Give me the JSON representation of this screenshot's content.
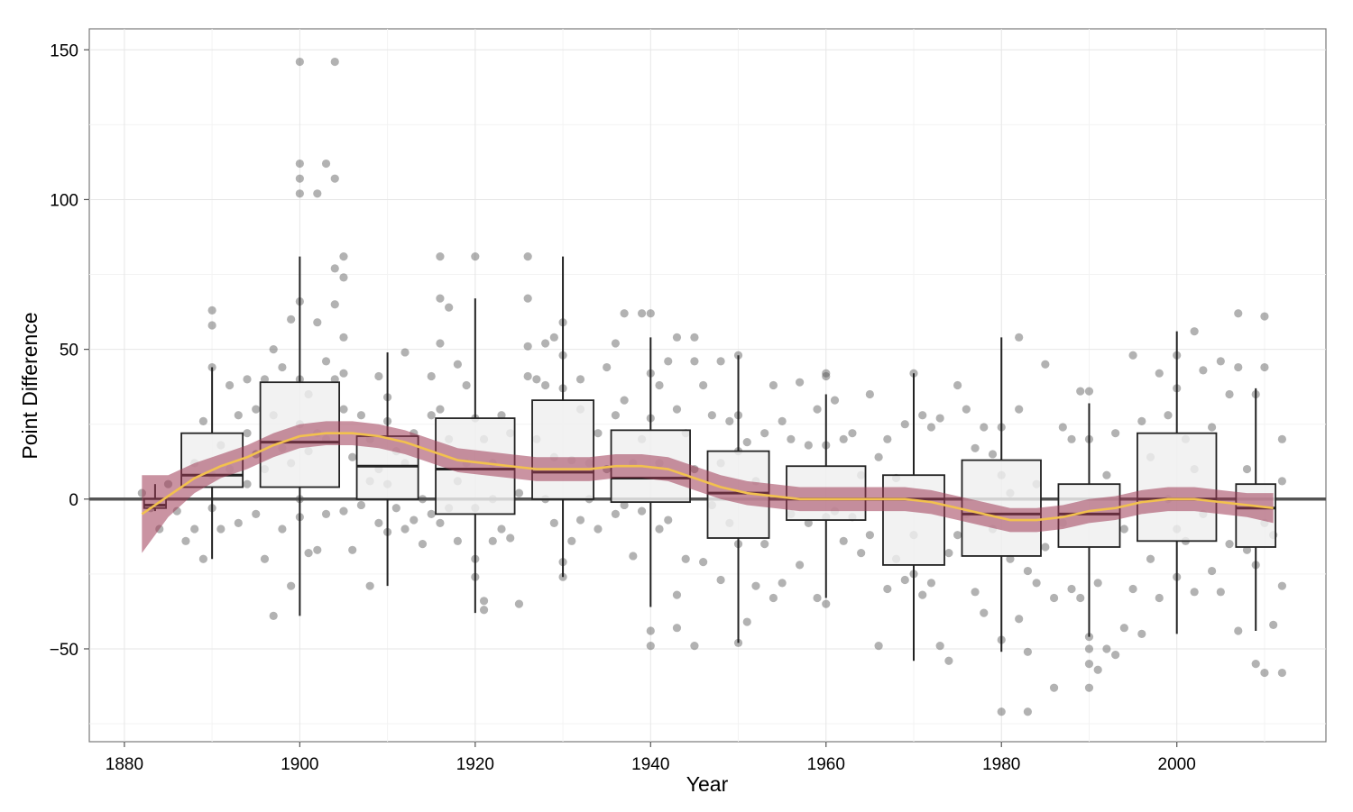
{
  "chart_data": {
    "type": "boxplot",
    "xlabel": "Year",
    "ylabel": "Point Difference",
    "xlim": [
      1876,
      2017
    ],
    "ylim": [
      -81,
      157
    ],
    "x_ticks": [
      1880,
      1900,
      1920,
      1940,
      1960,
      1980,
      2000
    ],
    "x_tick_labels": [
      "1880",
      "1900",
      "1920",
      "1940",
      "1960",
      "1980",
      "2000"
    ],
    "y_ticks": [
      -50,
      0,
      50,
      100,
      150
    ],
    "y_tick_labels": [
      "−50",
      "0",
      "50",
      "100",
      "150"
    ],
    "reference_line_y": 0,
    "grid": true,
    "colors": {
      "points": "#555555",
      "box_fill": "#efefef",
      "box_stroke": "#222222",
      "smooth_band": "#9e3a55",
      "smooth_line": "#f2c14e",
      "reference_line": "#555555"
    },
    "boxes": [
      {
        "x": 1883.5,
        "width": 2.5,
        "whisker_low": -4,
        "q1": -3,
        "median": -2,
        "q3": 0,
        "whisker_high": 5
      },
      {
        "x": 1890,
        "width": 7,
        "whisker_low": -20,
        "q1": 4,
        "median": 8,
        "q3": 22,
        "whisker_high": 44
      },
      {
        "x": 1900,
        "width": 9,
        "whisker_low": -39,
        "q1": 4,
        "median": 19,
        "q3": 39,
        "whisker_high": 81
      },
      {
        "x": 1910,
        "width": 7,
        "whisker_low": -29,
        "q1": 0,
        "median": 11,
        "q3": 21,
        "whisker_high": 49
      },
      {
        "x": 1920,
        "width": 9,
        "whisker_low": -38,
        "q1": -5,
        "median": 10,
        "q3": 27,
        "whisker_high": 67
      },
      {
        "x": 1930,
        "width": 7,
        "whisker_low": -26,
        "q1": 0,
        "median": 9,
        "q3": 33,
        "whisker_high": 81
      },
      {
        "x": 1940,
        "width": 9,
        "whisker_low": -36,
        "q1": -1,
        "median": 7,
        "q3": 23,
        "whisker_high": 54
      },
      {
        "x": 1950,
        "width": 7,
        "whisker_low": -48,
        "q1": -13,
        "median": 2,
        "q3": 16,
        "whisker_high": 48
      },
      {
        "x": 1960,
        "width": 9,
        "whisker_low": -33,
        "q1": -7,
        "median": 0,
        "q3": 11,
        "whisker_high": 35
      },
      {
        "x": 1970,
        "width": 7,
        "whisker_low": -54,
        "q1": -22,
        "median": 0,
        "q3": 8,
        "whisker_high": 42
      },
      {
        "x": 1980,
        "width": 9,
        "whisker_low": -51,
        "q1": -19,
        "median": -5,
        "q3": 13,
        "whisker_high": 54
      },
      {
        "x": 1990,
        "width": 7,
        "whisker_low": -46,
        "q1": -16,
        "median": -5,
        "q3": 5,
        "whisker_high": 32
      },
      {
        "x": 2000,
        "width": 9,
        "whisker_low": -45,
        "q1": -14,
        "median": 0,
        "q3": 22,
        "whisker_high": 56
      },
      {
        "x": 2009,
        "width": 4.5,
        "whisker_low": -44,
        "q1": -16,
        "median": -3,
        "q3": 5,
        "whisker_high": 37
      }
    ],
    "smooth": {
      "x": [
        1882,
        1885,
        1888,
        1891,
        1894,
        1897,
        1900,
        1903,
        1906,
        1909,
        1912,
        1915,
        1918,
        1921,
        1924,
        1927,
        1930,
        1933,
        1936,
        1939,
        1942,
        1945,
        1948,
        1951,
        1954,
        1957,
        1960,
        1963,
        1966,
        1969,
        1972,
        1975,
        1978,
        1981,
        1984,
        1987,
        1990,
        1993,
        1996,
        1999,
        2002,
        2005,
        2008,
        2011
      ],
      "y": [
        -5,
        1,
        7,
        11,
        14,
        18,
        21,
        22,
        22,
        21,
        19,
        16,
        13,
        12,
        11,
        10,
        10,
        10,
        11,
        11,
        10,
        7,
        4,
        2,
        1,
        0,
        0,
        0,
        0,
        0,
        -1,
        -3,
        -5,
        -7,
        -7,
        -6,
        -4,
        -3,
        -1,
        0,
        0,
        -1,
        -2,
        -3
      ],
      "band_halfwidth": [
        13,
        7,
        5,
        4,
        4,
        4,
        4,
        4,
        4,
        4,
        4,
        4,
        4,
        4,
        4,
        4,
        4,
        4,
        4,
        4,
        4,
        4,
        4,
        4,
        4,
        4,
        4,
        4,
        4,
        4,
        4,
        4,
        4,
        4,
        4,
        4,
        4,
        4,
        4,
        4,
        4,
        4,
        4,
        5
      ]
    },
    "points": [
      [
        1882,
        2
      ],
      [
        1883,
        -3
      ],
      [
        1884,
        -10
      ],
      [
        1885,
        5
      ],
      [
        1886,
        -4
      ],
      [
        1887,
        -14
      ],
      [
        1888,
        -10
      ],
      [
        1888,
        12
      ],
      [
        1889,
        -20
      ],
      [
        1889,
        26
      ],
      [
        1890,
        63
      ],
      [
        1890,
        58
      ],
      [
        1890,
        44
      ],
      [
        1890,
        8
      ],
      [
        1890,
        -3
      ],
      [
        1891,
        -10
      ],
      [
        1891,
        18
      ],
      [
        1892,
        10
      ],
      [
        1892,
        38
      ],
      [
        1893,
        28
      ],
      [
        1893,
        -8
      ],
      [
        1894,
        40
      ],
      [
        1894,
        22
      ],
      [
        1894,
        5
      ],
      [
        1895,
        -5
      ],
      [
        1895,
        15
      ],
      [
        1895,
        30
      ],
      [
        1896,
        -20
      ],
      [
        1896,
        40
      ],
      [
        1896,
        10
      ],
      [
        1897,
        50
      ],
      [
        1897,
        -39
      ],
      [
        1897,
        28
      ],
      [
        1898,
        -10
      ],
      [
        1898,
        17
      ],
      [
        1898,
        44
      ],
      [
        1899,
        -29
      ],
      [
        1899,
        60
      ],
      [
        1899,
        12
      ],
      [
        1900,
        146
      ],
      [
        1900,
        112
      ],
      [
        1900,
        107
      ],
      [
        1900,
        102
      ],
      [
        1900,
        66
      ],
      [
        1900,
        40
      ],
      [
        1900,
        0
      ],
      [
        1900,
        -6
      ],
      [
        1900,
        25
      ],
      [
        1901,
        16
      ],
      [
        1901,
        -18
      ],
      [
        1901,
        35
      ],
      [
        1902,
        102
      ],
      [
        1902,
        59
      ],
      [
        1902,
        -17
      ],
      [
        1902,
        22
      ],
      [
        1903,
        112
      ],
      [
        1903,
        46
      ],
      [
        1903,
        20
      ],
      [
        1903,
        -5
      ],
      [
        1904,
        146
      ],
      [
        1904,
        107
      ],
      [
        1904,
        77
      ],
      [
        1904,
        65
      ],
      [
        1904,
        40
      ],
      [
        1905,
        81
      ],
      [
        1905,
        74
      ],
      [
        1905,
        54
      ],
      [
        1905,
        42
      ],
      [
        1905,
        30
      ],
      [
        1905,
        -4
      ],
      [
        1906,
        -17
      ],
      [
        1906,
        14
      ],
      [
        1907,
        28
      ],
      [
        1907,
        -2
      ],
      [
        1908,
        6
      ],
      [
        1908,
        -29
      ],
      [
        1908,
        20
      ],
      [
        1909,
        41
      ],
      [
        1909,
        -8
      ],
      [
        1909,
        10
      ],
      [
        1910,
        34
      ],
      [
        1910,
        26
      ],
      [
        1910,
        5
      ],
      [
        1910,
        -11
      ],
      [
        1911,
        16
      ],
      [
        1911,
        -3
      ],
      [
        1912,
        49
      ],
      [
        1912,
        12
      ],
      [
        1912,
        -10
      ],
      [
        1913,
        22
      ],
      [
        1913,
        -7
      ],
      [
        1914,
        0
      ],
      [
        1914,
        -15
      ],
      [
        1915,
        41
      ],
      [
        1915,
        28
      ],
      [
        1915,
        -5
      ],
      [
        1916,
        81
      ],
      [
        1916,
        67
      ],
      [
        1916,
        52
      ],
      [
        1916,
        30
      ],
      [
        1916,
        -8
      ],
      [
        1917,
        64
      ],
      [
        1917,
        20
      ],
      [
        1917,
        -3
      ],
      [
        1918,
        45
      ],
      [
        1918,
        6
      ],
      [
        1918,
        -14
      ],
      [
        1919,
        38
      ],
      [
        1919,
        12
      ],
      [
        1920,
        81
      ],
      [
        1920,
        27
      ],
      [
        1920,
        -3
      ],
      [
        1920,
        -20
      ],
      [
        1920,
        -26
      ],
      [
        1921,
        -34
      ],
      [
        1921,
        -37
      ],
      [
        1921,
        20
      ],
      [
        1922,
        12
      ],
      [
        1922,
        0
      ],
      [
        1922,
        -14
      ],
      [
        1923,
        28
      ],
      [
        1923,
        -10
      ],
      [
        1924,
        22
      ],
      [
        1924,
        -13
      ],
      [
        1925,
        -35
      ],
      [
        1925,
        2
      ],
      [
        1926,
        81
      ],
      [
        1926,
        67
      ],
      [
        1926,
        51
      ],
      [
        1926,
        41
      ],
      [
        1927,
        40
      ],
      [
        1927,
        20
      ],
      [
        1928,
        52
      ],
      [
        1928,
        38
      ],
      [
        1928,
        0
      ],
      [
        1929,
        54
      ],
      [
        1929,
        14
      ],
      [
        1929,
        -8
      ],
      [
        1930,
        59
      ],
      [
        1930,
        48
      ],
      [
        1930,
        37
      ],
      [
        1930,
        -21
      ],
      [
        1930,
        -26
      ],
      [
        1931,
        13
      ],
      [
        1931,
        -14
      ],
      [
        1932,
        40
      ],
      [
        1932,
        30
      ],
      [
        1932,
        -7
      ],
      [
        1933,
        12
      ],
      [
        1933,
        0
      ],
      [
        1934,
        22
      ],
      [
        1934,
        -10
      ],
      [
        1935,
        44
      ],
      [
        1935,
        10
      ],
      [
        1936,
        52
      ],
      [
        1936,
        28
      ],
      [
        1936,
        -5
      ],
      [
        1937,
        62
      ],
      [
        1937,
        33
      ],
      [
        1937,
        -2
      ],
      [
        1938,
        -19
      ],
      [
        1938,
        12
      ],
      [
        1939,
        62
      ],
      [
        1939,
        20
      ],
      [
        1939,
        -4
      ],
      [
        1940,
        62
      ],
      [
        1940,
        42
      ],
      [
        1940,
        -44
      ],
      [
        1940,
        -49
      ],
      [
        1940,
        27
      ],
      [
        1941,
        38
      ],
      [
        1941,
        12
      ],
      [
        1941,
        -10
      ],
      [
        1942,
        46
      ],
      [
        1942,
        -7
      ],
      [
        1943,
        54
      ],
      [
        1943,
        -32
      ],
      [
        1943,
        -43
      ],
      [
        1943,
        30
      ],
      [
        1944,
        22
      ],
      [
        1944,
        -20
      ],
      [
        1945,
        54
      ],
      [
        1945,
        46
      ],
      [
        1945,
        -49
      ],
      [
        1945,
        10
      ],
      [
        1946,
        38
      ],
      [
        1946,
        -21
      ],
      [
        1947,
        28
      ],
      [
        1947,
        -2
      ],
      [
        1948,
        46
      ],
      [
        1948,
        12
      ],
      [
        1948,
        -27
      ],
      [
        1949,
        26
      ],
      [
        1949,
        -8
      ],
      [
        1950,
        48
      ],
      [
        1950,
        28
      ],
      [
        1950,
        16
      ],
      [
        1950,
        -15
      ],
      [
        1950,
        -48
      ],
      [
        1951,
        -41
      ],
      [
        1951,
        19
      ],
      [
        1952,
        6
      ],
      [
        1952,
        -29
      ],
      [
        1953,
        22
      ],
      [
        1953,
        -15
      ],
      [
        1954,
        38
      ],
      [
        1954,
        -33
      ],
      [
        1955,
        26
      ],
      [
        1955,
        -28
      ],
      [
        1956,
        20
      ],
      [
        1956,
        -5
      ],
      [
        1957,
        39
      ],
      [
        1957,
        -22
      ],
      [
        1958,
        18
      ],
      [
        1958,
        -8
      ],
      [
        1959,
        30
      ],
      [
        1959,
        -33
      ],
      [
        1960,
        42
      ],
      [
        1960,
        41
      ],
      [
        1960,
        18
      ],
      [
        1960,
        -35
      ],
      [
        1960,
        -6
      ],
      [
        1961,
        33
      ],
      [
        1961,
        -4
      ],
      [
        1962,
        20
      ],
      [
        1962,
        -14
      ],
      [
        1963,
        22
      ],
      [
        1963,
        -6
      ],
      [
        1964,
        8
      ],
      [
        1964,
        -18
      ],
      [
        1965,
        35
      ],
      [
        1965,
        -12
      ],
      [
        1966,
        -49
      ],
      [
        1966,
        14
      ],
      [
        1967,
        -30
      ],
      [
        1967,
        20
      ],
      [
        1968,
        -20
      ],
      [
        1968,
        7
      ],
      [
        1969,
        25
      ],
      [
        1969,
        -27
      ],
      [
        1970,
        42
      ],
      [
        1970,
        -25
      ],
      [
        1970,
        -12
      ],
      [
        1971,
        28
      ],
      [
        1971,
        -32
      ],
      [
        1972,
        -28
      ],
      [
        1972,
        24
      ],
      [
        1973,
        -49
      ],
      [
        1973,
        27
      ],
      [
        1974,
        -54
      ],
      [
        1974,
        -18
      ],
      [
        1975,
        38
      ],
      [
        1975,
        -12
      ],
      [
        1976,
        30
      ],
      [
        1976,
        -5
      ],
      [
        1977,
        -31
      ],
      [
        1977,
        17
      ],
      [
        1978,
        -38
      ],
      [
        1978,
        24
      ],
      [
        1979,
        -10
      ],
      [
        1979,
        15
      ],
      [
        1980,
        -71
      ],
      [
        1980,
        -47
      ],
      [
        1980,
        24
      ],
      [
        1980,
        8
      ],
      [
        1981,
        2
      ],
      [
        1981,
        -20
      ],
      [
        1982,
        30
      ],
      [
        1982,
        54
      ],
      [
        1982,
        -40
      ],
      [
        1983,
        -51
      ],
      [
        1983,
        -71
      ],
      [
        1983,
        -24
      ],
      [
        1984,
        -28
      ],
      [
        1984,
        5
      ],
      [
        1985,
        -16
      ],
      [
        1985,
        45
      ],
      [
        1986,
        -63
      ],
      [
        1986,
        -33
      ],
      [
        1987,
        24
      ],
      [
        1987,
        -8
      ],
      [
        1988,
        -30
      ],
      [
        1988,
        20
      ],
      [
        1989,
        -33
      ],
      [
        1989,
        36
      ],
      [
        1990,
        36
      ],
      [
        1990,
        20
      ],
      [
        1990,
        -50
      ],
      [
        1990,
        -55
      ],
      [
        1990,
        -63
      ],
      [
        1990,
        -46
      ],
      [
        1991,
        -57
      ],
      [
        1991,
        -28
      ],
      [
        1992,
        -50
      ],
      [
        1992,
        8
      ],
      [
        1993,
        -52
      ],
      [
        1993,
        22
      ],
      [
        1994,
        -43
      ],
      [
        1994,
        -10
      ],
      [
        1995,
        48
      ],
      [
        1995,
        -30
      ],
      [
        1996,
        26
      ],
      [
        1996,
        -45
      ],
      [
        1997,
        14
      ],
      [
        1997,
        -20
      ],
      [
        1998,
        42
      ],
      [
        1998,
        -33
      ],
      [
        1999,
        28
      ],
      [
        1999,
        0
      ],
      [
        2000,
        48
      ],
      [
        2000,
        37
      ],
      [
        2000,
        -26
      ],
      [
        2000,
        -10
      ],
      [
        2001,
        -14
      ],
      [
        2001,
        20
      ],
      [
        2002,
        56
      ],
      [
        2002,
        10
      ],
      [
        2002,
        -31
      ],
      [
        2003,
        43
      ],
      [
        2003,
        -5
      ],
      [
        2004,
        24
      ],
      [
        2004,
        -24
      ],
      [
        2005,
        46
      ],
      [
        2005,
        -31
      ],
      [
        2006,
        35
      ],
      [
        2006,
        -15
      ],
      [
        2007,
        62
      ],
      [
        2007,
        -44
      ],
      [
        2007,
        44
      ],
      [
        2008,
        -17
      ],
      [
        2008,
        10
      ],
      [
        2009,
        35
      ],
      [
        2009,
        -55
      ],
      [
        2009,
        -22
      ],
      [
        2010,
        61
      ],
      [
        2010,
        44
      ],
      [
        2010,
        -58
      ],
      [
        2010,
        -8
      ],
      [
        2011,
        -42
      ],
      [
        2011,
        -12
      ],
      [
        2012,
        20
      ],
      [
        2012,
        -29
      ],
      [
        2012,
        -58
      ],
      [
        2012,
        6
      ]
    ]
  }
}
